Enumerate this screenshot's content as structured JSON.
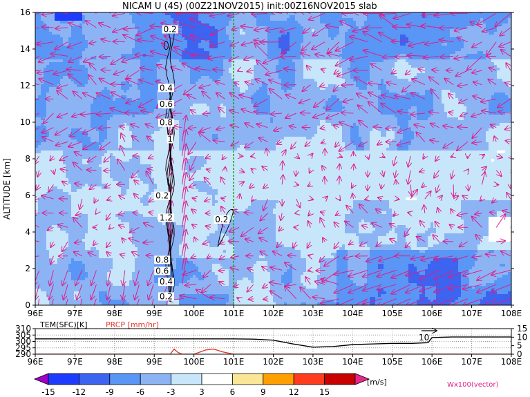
{
  "title": "NICAM U (4S) (00Z21NOV2015) init:00Z16NOV2015 slab",
  "chart_data": [
    {
      "type": "heatmap",
      "panel": "main",
      "ylabel": "ALTITUDE [km]",
      "x_ticks": [
        "96E",
        "97E",
        "98E",
        "99E",
        "100E",
        "101E",
        "102E",
        "103E",
        "104E",
        "105E",
        "106E",
        "107E",
        "108E"
      ],
      "x_range": [
        96,
        108
      ],
      "y_ticks": [
        "0",
        "2",
        "4",
        "6",
        "8",
        "10",
        "12",
        "14",
        "16"
      ],
      "y_range": [
        0,
        16
      ],
      "marker_line_lon": 101,
      "contour_labels": [
        {
          "text": "0.2",
          "lon": 99.4,
          "alt": 15.0
        },
        {
          "text": "0.4",
          "lon": 99.3,
          "alt": 11.8
        },
        {
          "text": "0.6",
          "lon": 99.3,
          "alt": 10.9
        },
        {
          "text": "0.8",
          "lon": 99.3,
          "alt": 9.9
        },
        {
          "text": "1",
          "lon": 99.4,
          "alt": 9.0
        },
        {
          "text": "0.2",
          "lon": 99.2,
          "alt": 5.9
        },
        {
          "text": "1.2",
          "lon": 99.3,
          "alt": 4.7
        },
        {
          "text": "0.2",
          "lon": 100.7,
          "alt": 4.6
        },
        {
          "text": "0.8",
          "lon": 99.2,
          "alt": 2.4
        },
        {
          "text": "0.6",
          "lon": 99.2,
          "alt": 1.8
        },
        {
          "text": "0.4",
          "lon": 99.3,
          "alt": 1.2
        },
        {
          "text": "0.2",
          "lon": 99.3,
          "alt": 0.4
        }
      ]
    },
    {
      "type": "line",
      "panel": "bottom",
      "label_tem": "TEM(SFC)[K]",
      "label_prcp": "PRCP [mm/hr]",
      "left_ticks": [
        "310",
        "305",
        "300",
        "295",
        "290"
      ],
      "right_ticks": [
        "15",
        "10",
        "5",
        "0"
      ],
      "tem_range": [
        290,
        310
      ],
      "prcp_range": [
        0,
        15
      ],
      "x_ticks": [
        "96E",
        "97E",
        "98E",
        "99E",
        "100E",
        "101E",
        "102E",
        "103E",
        "104E",
        "105E",
        "106E",
        "107E",
        "108E"
      ],
      "vector_label": "10",
      "series": [
        {
          "name": "TEM(SFC)[K]",
          "color": "#000000",
          "x": [
            96,
            97,
            98,
            99,
            100,
            101,
            101.5,
            102,
            102.5,
            103,
            103.5,
            104,
            104.5,
            105,
            105.5,
            105.9,
            106,
            106.5,
            107,
            108
          ],
          "y": [
            302,
            302,
            302,
            302,
            302,
            302,
            301.8,
            301,
            298,
            295.5,
            296,
            297.5,
            298,
            298.5,
            298.5,
            299,
            303,
            303.5,
            303.5,
            303.5
          ]
        },
        {
          "name": "PRCP [mm/hr]",
          "color": "#e8382c",
          "x": [
            96,
            99.4,
            99.5,
            99.6,
            99.7,
            100,
            100.3,
            100.5,
            100.7,
            100.9,
            101,
            108
          ],
          "y": [
            0,
            0,
            3,
            1,
            0,
            0,
            2.5,
            3,
            1.5,
            0.5,
            0,
            0
          ]
        }
      ]
    },
    {
      "type": "bar",
      "panel": "colorbar",
      "title": "[m/s]",
      "vector_title": "Wx100(vector)",
      "levels": [
        "-15",
        "-12",
        "-9",
        "-6",
        "-3",
        "3",
        "6",
        "9",
        "12",
        "15"
      ],
      "colors": [
        "#a000c8",
        "#1e3cff",
        "#3c64f0",
        "#5a96f5",
        "#8cb4f5",
        "#c8e6fa",
        "#ffffff",
        "#fae696",
        "#ffa000",
        "#ff3c1e",
        "#c80000",
        "#e6288c"
      ]
    }
  ]
}
